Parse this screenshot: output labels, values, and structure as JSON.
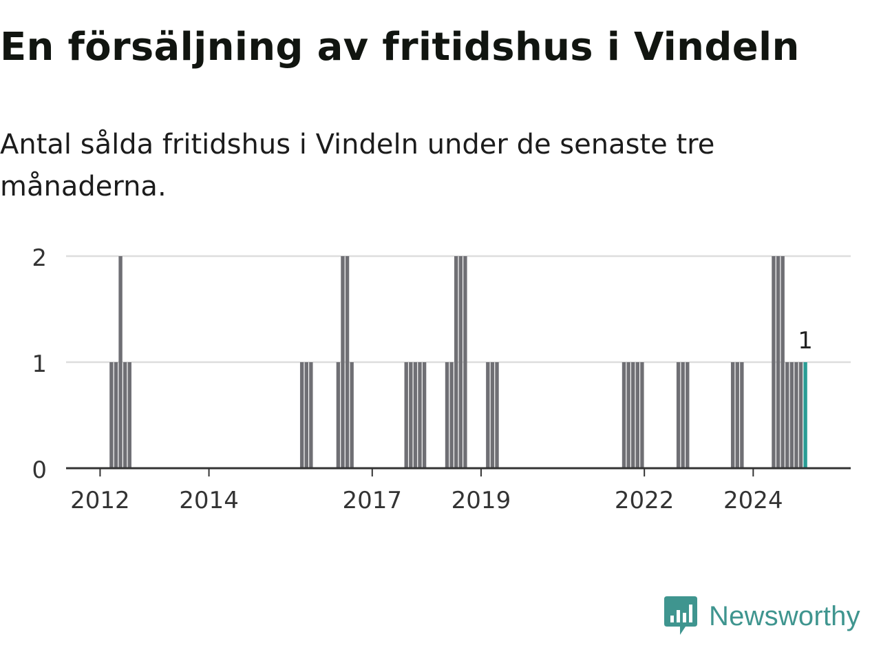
{
  "header": {
    "title": "En försäljning av fritidshus i Vindeln",
    "subtitle": "Antal sålda fritidshus i Vindeln under de senaste tre månaderna."
  },
  "brand": {
    "name": "Newsworthy",
    "color": "#3f958f",
    "icon": "newsworthy-logo-icon"
  },
  "colors": {
    "bar": "#6f6f74",
    "highlight": "#2a9d95",
    "grid": "#dddddd",
    "axis": "#333333"
  },
  "chart_data": {
    "type": "bar",
    "title": "En försäljning av fritidshus i Vindeln",
    "subtitle": "Antal sålda fritidshus i Vindeln under de senaste tre månaderna.",
    "xlabel": "",
    "ylabel": "",
    "x_type": "date",
    "xlim": [
      "2011-05",
      "2025-10"
    ],
    "ylim": [
      0,
      2
    ],
    "y_ticks": [
      0,
      1,
      2
    ],
    "x_ticks": [
      "2012",
      "2014",
      "2017",
      "2019",
      "2022",
      "2024"
    ],
    "grid": true,
    "legend": "none",
    "highlight_label": "1",
    "series": [
      {
        "values": [
          {
            "x": "2012-03",
            "y": 1
          },
          {
            "x": "2012-04",
            "y": 1
          },
          {
            "x": "2012-05",
            "y": 2
          },
          {
            "x": "2012-06",
            "y": 1
          },
          {
            "x": "2012-07",
            "y": 1
          },
          {
            "x": "2015-09",
            "y": 1
          },
          {
            "x": "2015-10",
            "y": 1
          },
          {
            "x": "2015-11",
            "y": 1
          },
          {
            "x": "2016-05",
            "y": 1
          },
          {
            "x": "2016-06",
            "y": 2
          },
          {
            "x": "2016-07",
            "y": 2
          },
          {
            "x": "2016-08",
            "y": 1
          },
          {
            "x": "2017-08",
            "y": 1
          },
          {
            "x": "2017-09",
            "y": 1
          },
          {
            "x": "2017-10",
            "y": 1
          },
          {
            "x": "2017-11",
            "y": 1
          },
          {
            "x": "2017-12",
            "y": 1
          },
          {
            "x": "2018-05",
            "y": 1
          },
          {
            "x": "2018-06",
            "y": 1
          },
          {
            "x": "2018-07",
            "y": 2
          },
          {
            "x": "2018-08",
            "y": 2
          },
          {
            "x": "2018-09",
            "y": 2
          },
          {
            "x": "2019-02",
            "y": 1
          },
          {
            "x": "2019-03",
            "y": 1
          },
          {
            "x": "2019-04",
            "y": 1
          },
          {
            "x": "2021-08",
            "y": 1
          },
          {
            "x": "2021-09",
            "y": 1
          },
          {
            "x": "2021-10",
            "y": 1
          },
          {
            "x": "2021-11",
            "y": 1
          },
          {
            "x": "2021-12",
            "y": 1
          },
          {
            "x": "2022-08",
            "y": 1
          },
          {
            "x": "2022-09",
            "y": 1
          },
          {
            "x": "2022-10",
            "y": 1
          },
          {
            "x": "2023-08",
            "y": 1
          },
          {
            "x": "2023-09",
            "y": 1
          },
          {
            "x": "2023-10",
            "y": 1
          },
          {
            "x": "2024-05",
            "y": 2
          },
          {
            "x": "2024-06",
            "y": 2
          },
          {
            "x": "2024-07",
            "y": 2
          },
          {
            "x": "2024-08",
            "y": 1
          },
          {
            "x": "2024-09",
            "y": 1
          },
          {
            "x": "2024-10",
            "y": 1
          },
          {
            "x": "2024-11",
            "y": 1
          },
          {
            "x": "2024-12",
            "y": 1
          }
        ]
      }
    ]
  }
}
